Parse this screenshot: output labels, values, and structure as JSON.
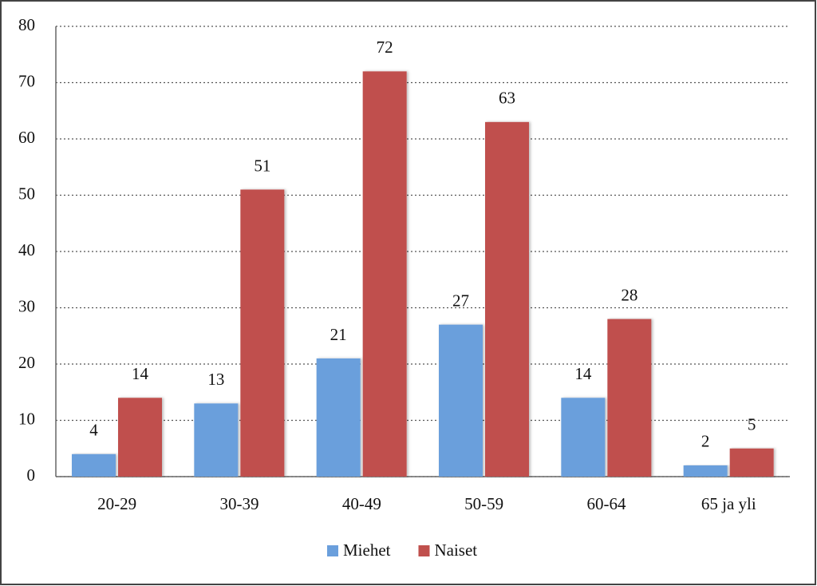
{
  "chart_data": {
    "type": "bar",
    "categories": [
      "20-29",
      "30-39",
      "40-49",
      "50-59",
      "60-64",
      "65 ja yli"
    ],
    "series": [
      {
        "name": "Miehet",
        "color": "#6a9fdc",
        "values": [
          4,
          13,
          21,
          27,
          14,
          2
        ]
      },
      {
        "name": "Naiset",
        "color": "#c0504d",
        "values": [
          14,
          51,
          72,
          63,
          28,
          5
        ]
      }
    ],
    "ylim": [
      0,
      80
    ],
    "yticks": [
      0,
      10,
      20,
      30,
      40,
      50,
      60,
      70,
      80
    ],
    "grid": true,
    "legend": "bottom"
  }
}
